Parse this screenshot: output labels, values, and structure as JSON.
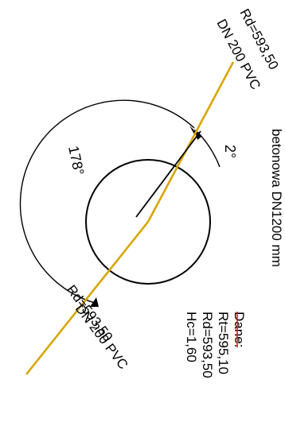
{
  "colors": {
    "pipe": "#D9A400",
    "line": "#000000",
    "underline": "#D81E1E",
    "background": "#FFFFFF"
  },
  "pipe_top": {
    "label": "DN 200 PVC",
    "elevation": "Rd=593,50"
  },
  "pipe_bottom": {
    "label": "DN 200 PVC",
    "elevation": "Rd=593,50"
  },
  "angles": {
    "large": "178°",
    "small": "2°"
  },
  "well": {
    "description": "betonowa DN1200 mm"
  },
  "dane": {
    "title": "Dane:",
    "rt": "Rt=595,10",
    "rd": "Rd=593,50",
    "hc": "Hc=1,60"
  }
}
